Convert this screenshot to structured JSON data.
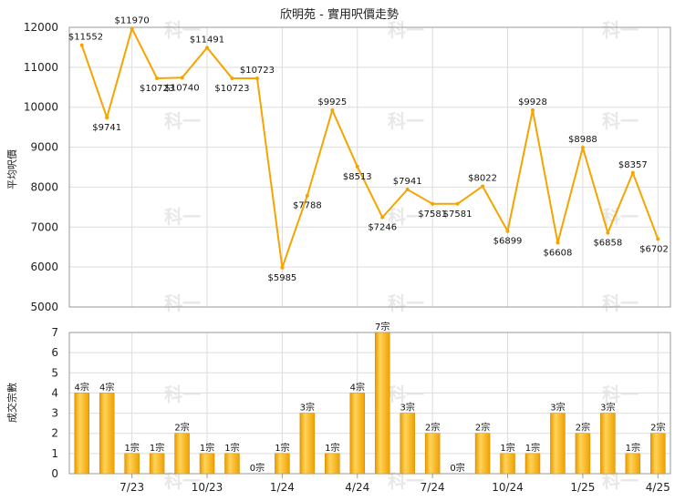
{
  "chart_data": [
    {
      "type": "line",
      "title": "欣明苑 - 實用呎價走勢",
      "ylabel": "平均呎價",
      "ylim": [
        5000,
        12000
      ],
      "yticks": [
        "5000",
        "6000",
        "7000",
        "8000",
        "9000",
        "10000",
        "11000",
        "12000"
      ],
      "color": "#f5a400",
      "series": [
        {
          "values": [
            11552,
            9741,
            11970,
            10723,
            10740,
            11491,
            10723,
            10723,
            5985,
            7788,
            9925,
            8513,
            7246,
            7941,
            7581,
            7581,
            8022,
            6899,
            9928,
            6608,
            8988,
            6858,
            8357,
            6702
          ],
          "labels": [
            "$11552",
            "$9741",
            "$11970",
            "$10723",
            "$10740",
            "$11491",
            "$10723",
            "$10723",
            "$5985",
            "$7788",
            "$9925",
            "$8513",
            "$7246",
            "$7941",
            "$7581",
            "$7581",
            "$8022",
            "$6899",
            "$9928",
            "$6608",
            "$8988",
            "$6858",
            "$8357",
            "$6702"
          ]
        }
      ]
    },
    {
      "type": "bar",
      "ylabel": "成交宗數",
      "ylim": [
        0,
        7
      ],
      "yticks": [
        "0",
        "1",
        "2",
        "3",
        "4",
        "5",
        "6",
        "7"
      ],
      "categories": [
        "",
        "",
        "7/23",
        "",
        "",
        "10/23",
        "",
        "",
        "1/24",
        "",
        "",
        "4/24",
        "",
        "",
        "7/24",
        "",
        "",
        "10/24",
        "",
        "",
        "1/25",
        "",
        "",
        "4/25"
      ],
      "values": [
        4,
        4,
        1,
        1,
        2,
        1,
        1,
        0,
        1,
        3,
        1,
        4,
        7,
        3,
        2,
        0,
        2,
        1,
        1,
        3,
        2,
        3,
        1,
        2
      ],
      "labels": [
        "4宗",
        "4宗",
        "1宗",
        "1宗",
        "2宗",
        "1宗",
        "1宗",
        "0宗",
        "1宗",
        "3宗",
        "1宗",
        "4宗",
        "7宗",
        "3宗",
        "2宗",
        "0宗",
        "2宗",
        "1宗",
        "1宗",
        "3宗",
        "2宗",
        "3宗",
        "1宗",
        "2宗"
      ],
      "color": "#f5a400"
    }
  ],
  "watermark": "科一"
}
